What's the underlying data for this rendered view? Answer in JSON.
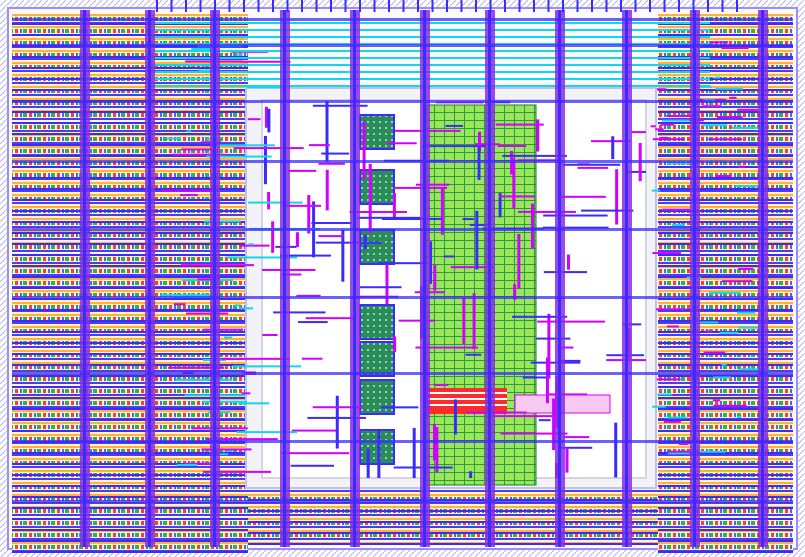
{
  "view": {
    "type": "ic-layout-viewer"
  },
  "layers": [
    {
      "name": "metal1",
      "color": "#3a2cff"
    },
    {
      "name": "metal2",
      "color": "#d400ff"
    },
    {
      "name": "metal3",
      "color": "#8a2be2"
    },
    {
      "name": "poly",
      "color": "#ff2a2a"
    },
    {
      "name": "diffusion",
      "color": "#77dd33"
    },
    {
      "name": "nwell",
      "color": "#ffd04a"
    },
    {
      "name": "contact",
      "color": "#11d8e8"
    },
    {
      "name": "via",
      "color": "#2d8a5a"
    },
    {
      "name": "boundary",
      "color": "#c9c9d6"
    }
  ]
}
